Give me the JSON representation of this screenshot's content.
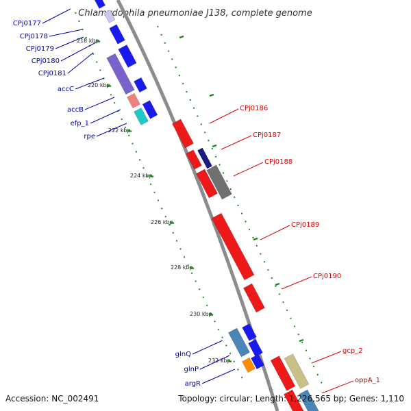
{
  "title": "Chlamydophila pneumoniae J138, complete genome",
  "footer": {
    "accession": "Accession: NC_002491",
    "summary": "Topology: circular; Length: 1,226,565 bp; Genes: 1,110"
  },
  "colors": {
    "backbone": "#8c8c8c",
    "tick": "#1a8a1a",
    "forward_label": "#0000aa",
    "reverse_label": "#dd0000",
    "forward_gene": "#1a1aee",
    "reverse_gene": "#ee1a1a"
  },
  "ticks": [
    "218 kbp",
    "220 kbp",
    "222 kbp",
    "224 kbp",
    "226 kbp",
    "228 kbp",
    "230 kbp",
    "232 kbp"
  ],
  "forward_labels": [
    "CPj0177",
    "CPj0178",
    "CPj0179",
    "CPj0180",
    "CPj0181",
    "accC",
    "accB",
    "efp_1",
    "rpe",
    "glnQ",
    "glnP",
    "argR"
  ],
  "reverse_labels": [
    "CPj0186",
    "CPj0187",
    "CPj0188",
    "CPj0189",
    "CPj0190",
    "gcp_2",
    "oppA_1"
  ]
}
